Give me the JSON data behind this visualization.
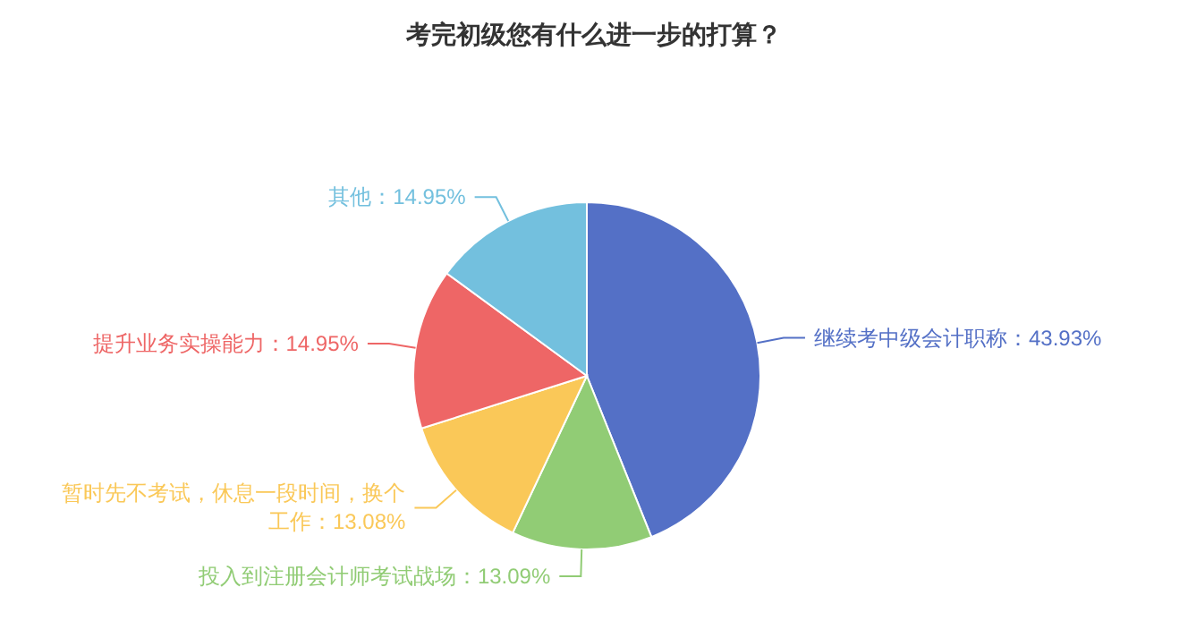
{
  "chart_data": {
    "type": "pie",
    "title": "考完初级您有什么进一步的打算？",
    "categories": [
      "继续考中级会计职称：43.93%",
      "投入到注册会计师考试战场：13.09%",
      "暂时先不考试，休息一段时间，换个工作：13.08%",
      "提升业务实操能力：14.95%",
      "其他：14.95%"
    ],
    "values": [
      43.93,
      13.09,
      13.08,
      14.95,
      14.95
    ],
    "colors": [
      "#5470c6",
      "#91cc75",
      "#fac858",
      "#ee6666",
      "#73c0de"
    ]
  }
}
